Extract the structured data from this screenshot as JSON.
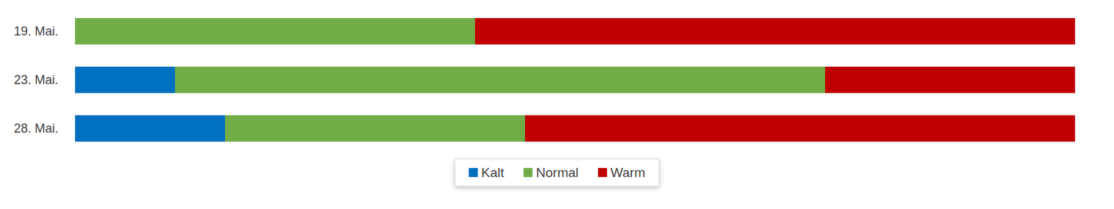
{
  "chart_data": {
    "type": "bar",
    "orientation": "horizontal",
    "stacked": true,
    "categories": [
      "19. Mai.",
      "23. Mai.",
      "28. Mai."
    ],
    "series": [
      {
        "name": "Kalt",
        "color": "#0070c0",
        "values": [
          0,
          10,
          15
        ]
      },
      {
        "name": "Normal",
        "color": "#70ad47",
        "values": [
          40,
          65,
          30
        ]
      },
      {
        "name": "Warm",
        "color": "#c00000",
        "values": [
          60,
          25,
          55
        ]
      }
    ],
    "xlim": [
      0,
      100
    ],
    "grid": false,
    "legend": "bottom",
    "tick_labels": "y",
    "data_labels": false
  }
}
